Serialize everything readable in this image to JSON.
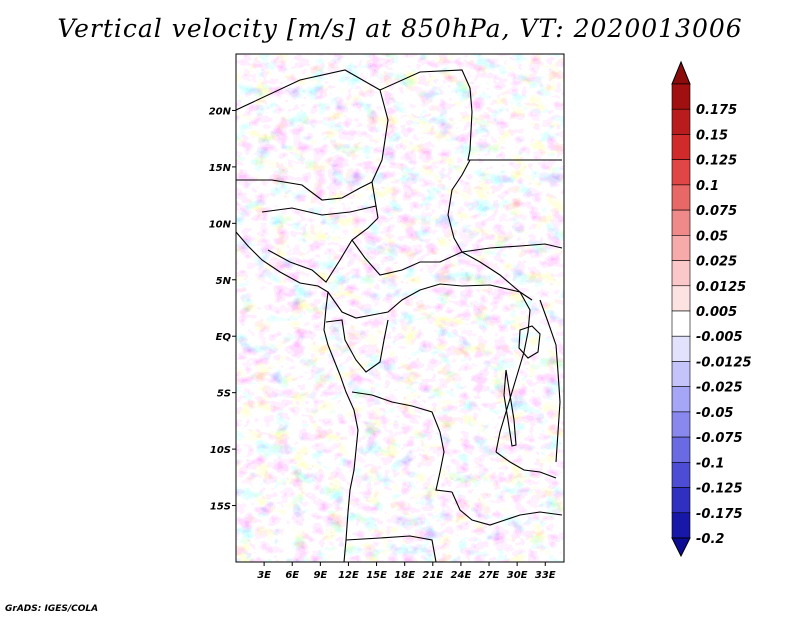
{
  "title": "Vertical velocity [m/s] at 850hPa, VT: 2020013006",
  "credit": "GrADS: IGES/COLA",
  "map": {
    "lon_range": [
      0,
      35
    ],
    "lat_range": [
      -20,
      25
    ],
    "x_ticks": [
      {
        "lon": 3,
        "label": "3E"
      },
      {
        "lon": 6,
        "label": "6E"
      },
      {
        "lon": 9,
        "label": "9E"
      },
      {
        "lon": 12,
        "label": "12E"
      },
      {
        "lon": 15,
        "label": "15E"
      },
      {
        "lon": 18,
        "label": "18E"
      },
      {
        "lon": 21,
        "label": "21E"
      },
      {
        "lon": 24,
        "label": "24E"
      },
      {
        "lon": 27,
        "label": "27E"
      },
      {
        "lon": 30,
        "label": "30E"
      },
      {
        "lon": 33,
        "label": "33E"
      }
    ],
    "y_ticks": [
      {
        "lat": 20,
        "label": "20N"
      },
      {
        "lat": 15,
        "label": "15N"
      },
      {
        "lat": 10,
        "label": "10N"
      },
      {
        "lat": 5,
        "label": "5N"
      },
      {
        "lat": 0,
        "label": "EQ"
      },
      {
        "lat": -5,
        "label": "5S"
      },
      {
        "lat": -10,
        "label": "10S"
      },
      {
        "lat": -15,
        "label": "15S"
      }
    ]
  },
  "colorbar": {
    "levels": [
      {
        "label": "0.175",
        "color": "#a01010"
      },
      {
        "label": "0.15",
        "color": "#b81c1c"
      },
      {
        "label": "0.125",
        "color": "#d02a2a"
      },
      {
        "label": "0.1",
        "color": "#e04646"
      },
      {
        "label": "0.075",
        "color": "#e86868"
      },
      {
        "label": "0.05",
        "color": "#f08a8a"
      },
      {
        "label": "0.025",
        "color": "#f6aaaa"
      },
      {
        "label": "0.0125",
        "color": "#fac8c8"
      },
      {
        "label": "0.005",
        "color": "#fde2e2"
      },
      {
        "label": "-0.005",
        "color": "#ffffff"
      },
      {
        "label": "-0.0125",
        "color": "#e2e2fd"
      },
      {
        "label": "-0.025",
        "color": "#c4c4fa"
      },
      {
        "label": "-0.05",
        "color": "#a6a6f6"
      },
      {
        "label": "-0.075",
        "color": "#8888ee"
      },
      {
        "label": "-0.1",
        "color": "#6a6ae2"
      },
      {
        "label": "-0.125",
        "color": "#4c4cd4"
      },
      {
        "label": "-0.175",
        "color": "#3030c0"
      },
      {
        "label": "-0.2",
        "color": "#1818a8"
      }
    ],
    "top_color": "#8c0c0c",
    "bottom_color": "#0c0c94"
  }
}
